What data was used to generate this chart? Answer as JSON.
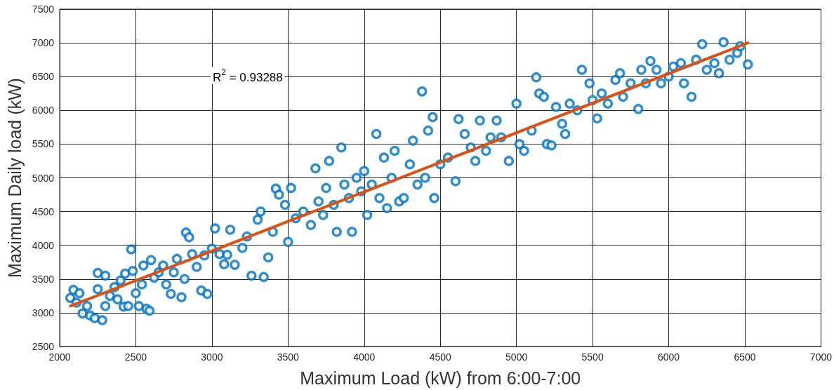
{
  "chart_data": {
    "type": "scatter",
    "xlabel": "Maximum Load (kW) from 6:00-7:00",
    "ylabel": "Maximum Daily load (kW)",
    "annotations": [
      "R$^{2}$ = 0.93288"
    ],
    "xlim": [
      2000,
      7000
    ],
    "xticks": [
      2000,
      2500,
      3000,
      3500,
      4000,
      4500,
      5000,
      5500,
      6000,
      6500,
      7000
    ],
    "ylim": [
      2500,
      7500
    ],
    "yticks": [
      2500,
      3000,
      3500,
      4000,
      4500,
      5000,
      5500,
      6000,
      6500,
      7000,
      7500
    ],
    "grid": true,
    "marker": "circle",
    "series": [
      {
        "color": "#0072bd",
        "x": [
          2070,
          2090,
          2110,
          2130,
          2150,
          2180,
          2200,
          2230,
          2250,
          2250,
          2280,
          2300,
          2300,
          2330,
          2360,
          2380,
          2400,
          2420,
          2430,
          2450,
          2470,
          2480,
          2500,
          2520,
          2540,
          2550,
          2570,
          2590,
          2600,
          2620,
          2650,
          2680,
          2700,
          2730,
          2750,
          2770,
          2800,
          2820,
          2830,
          2850,
          2870,
          2900,
          2930,
          2950,
          2970,
          3000,
          3020,
          3050,
          3080,
          3100,
          3120,
          3150,
          3200,
          3230,
          3260,
          3300,
          3320,
          3340,
          3370,
          3400,
          3420,
          3440,
          3480,
          3500,
          3520,
          3550,
          3600,
          3650,
          3680,
          3700,
          3730,
          3750,
          3770,
          3800,
          3820,
          3850,
          3870,
          3900,
          3920,
          3950,
          3980,
          4000,
          4020,
          4050,
          4080,
          4100,
          4130,
          4150,
          4180,
          4200,
          4230,
          4260,
          4300,
          4320,
          4350,
          4380,
          4400,
          4420,
          4450,
          4460,
          4500,
          4550,
          4600,
          4620,
          4660,
          4700,
          4730,
          4760,
          4800,
          4830,
          4870,
          4900,
          4950,
          5000,
          5020,
          5050,
          5100,
          5130,
          5150,
          5180,
          5200,
          5230,
          5260,
          5300,
          5320,
          5350,
          5400,
          5430,
          5480,
          5500,
          5530,
          5560,
          5600,
          5650,
          5680,
          5700,
          5750,
          5800,
          5820,
          5850,
          5880,
          5920,
          5950,
          6000,
          6030,
          6080,
          6100,
          6150,
          6180,
          6220,
          6250,
          6300,
          6330,
          6360,
          6400,
          6450,
          6470,
          6520
        ],
        "values": [
          3220,
          3340,
          3150,
          3290,
          2990,
          3100,
          2960,
          2920,
          3350,
          3590,
          2890,
          3550,
          3100,
          3250,
          3380,
          3200,
          3480,
          3090,
          3580,
          3100,
          3940,
          3620,
          3290,
          3100,
          3420,
          3700,
          3060,
          3030,
          3780,
          3520,
          3600,
          3700,
          3420,
          3280,
          3600,
          3800,
          3230,
          3500,
          4190,
          4120,
          3870,
          3680,
          3330,
          3850,
          3280,
          3950,
          4250,
          3870,
          3720,
          3860,
          4230,
          3710,
          3960,
          4130,
          3550,
          4380,
          4500,
          3530,
          3820,
          4200,
          4840,
          4750,
          4600,
          4050,
          4850,
          4400,
          4500,
          4300,
          5140,
          4650,
          4450,
          4850,
          5250,
          4600,
          4200,
          5450,
          4900,
          4700,
          4200,
          5000,
          4800,
          5100,
          4450,
          4900,
          5650,
          4700,
          5300,
          4550,
          5000,
          5400,
          4650,
          4700,
          5200,
          5550,
          4900,
          6280,
          5000,
          5700,
          5900,
          4700,
          5200,
          5300,
          4950,
          5870,
          5650,
          5450,
          5250,
          5850,
          5400,
          5600,
          5850,
          5600,
          5250,
          6100,
          5500,
          5400,
          5700,
          6490,
          6250,
          6200,
          5500,
          5480,
          6050,
          5800,
          5650,
          6100,
          6000,
          6600,
          6400,
          6150,
          5880,
          6250,
          6100,
          6450,
          6550,
          6200,
          6400,
          6020,
          6600,
          6400,
          6730,
          6600,
          6400,
          6500,
          6650,
          6700,
          6400,
          6200,
          6750,
          6980,
          6600,
          6700,
          6550,
          7010,
          6750,
          6850,
          6950,
          6680
        ]
      },
      {
        "type": "line",
        "color": "#d95319",
        "marker": "none",
        "x": [
          2070,
          6520
        ],
        "values": [
          3100,
          7000
        ]
      }
    ]
  }
}
